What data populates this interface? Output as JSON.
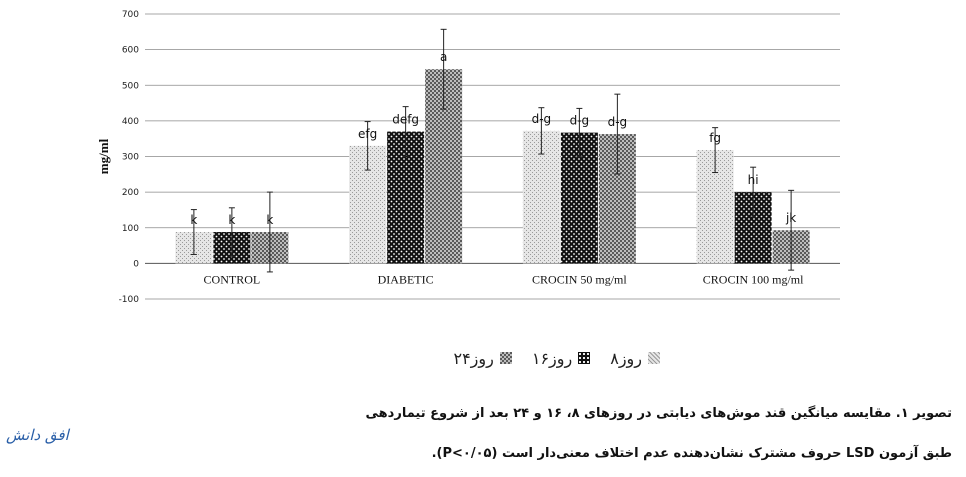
{
  "chart_data": {
    "type": "bar",
    "ylabel": "mg/ml",
    "xlabel": "",
    "ylim": [
      -100,
      700
    ],
    "yticks": [
      -100,
      0,
      100,
      200,
      300,
      400,
      500,
      600,
      700
    ],
    "grid": true,
    "legend_position": "bottom",
    "categories": [
      "CONTROL",
      "DIABETIC",
      "CROCIN 50 mg/ml",
      "CROCIN 100 mg/ml"
    ],
    "series": [
      {
        "name": "روز۸",
        "values": [
          88,
          330,
          372,
          318
        ],
        "errors": [
          63,
          68,
          65,
          63
        ],
        "labels": [
          "k",
          "efg",
          "d-g",
          "fg"
        ]
      },
      {
        "name": "روز۱۶",
        "values": [
          88,
          370,
          367,
          200
        ],
        "errors": [
          68,
          70,
          68,
          70
        ],
        "labels": [
          "k",
          "defg",
          "d-g",
          "hi"
        ]
      },
      {
        "name": "روز۲۴",
        "values": [
          88,
          545,
          363,
          93
        ],
        "errors": [
          112,
          112,
          112,
          112
        ],
        "labels": [
          "k",
          "a",
          "d-g",
          "jk"
        ]
      }
    ]
  },
  "legend": {
    "items": [
      "روز۸",
      "روز۱۶",
      "روز۲۴"
    ]
  },
  "caption": {
    "line1": "تصویر ۱. مقایسه میانگین قند موش‌های دیابتی در روزهای ۸، ۱۶ و ۲۴ بعد از شروع تیماردهی",
    "line2": "طبق آزمون LSD حروف مشترک نشان‌دهنده عدم اختلاف معنی‌دار است (P<۰/۰۵)."
  },
  "watermark": "افق دانش"
}
